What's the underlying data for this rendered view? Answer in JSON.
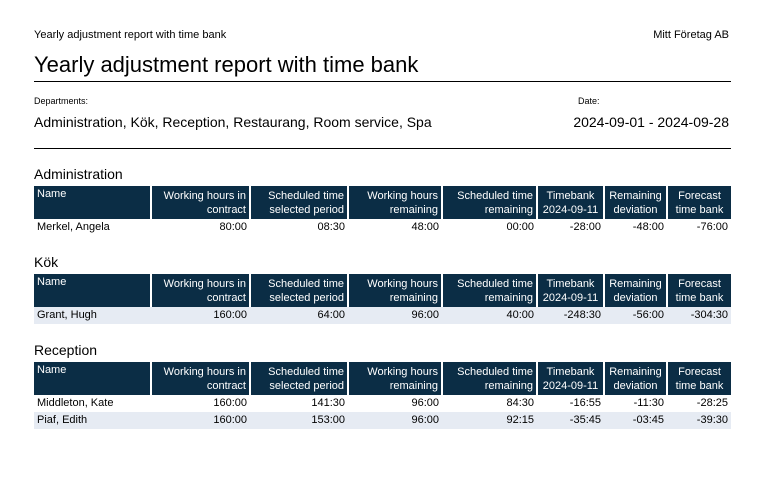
{
  "header": {
    "small_title": "Yearly adjustment report with time bank",
    "company": "Mitt Företag AB",
    "title": "Yearly adjustment report with time bank"
  },
  "meta": {
    "departments_label": "Departments:",
    "departments_value": "Administration, Kök, Reception, Restaurang, Room service, Spa",
    "date_label": "Date:",
    "date_value": "2024-09-01 - 2024-09-28"
  },
  "columns": [
    {
      "line1": "Name",
      "line2": ""
    },
    {
      "line1": "Working hours in",
      "line2": "contract"
    },
    {
      "line1": "Scheduled time",
      "line2": "selected period"
    },
    {
      "line1": "Working hours",
      "line2": "remaining"
    },
    {
      "line1": "Scheduled time",
      "line2": "remaining"
    },
    {
      "line1": "Timebank",
      "line2": "2024-09-11"
    },
    {
      "line1": "Remaining",
      "line2": "deviation"
    },
    {
      "line1": "Forecast",
      "line2": "time bank"
    }
  ],
  "sections": [
    {
      "title": "Administration",
      "rows": [
        [
          "Merkel, Angela",
          "80:00",
          "08:30",
          "48:00",
          "00:00",
          "-28:00",
          "-48:00",
          "-76:00"
        ]
      ]
    },
    {
      "title": "Kök",
      "rows": [
        [
          "Grant, Hugh",
          "160:00",
          "64:00",
          "96:00",
          "40:00",
          "-248:30",
          "-56:00",
          "-304:30"
        ]
      ]
    },
    {
      "title": "Reception",
      "rows": [
        [
          "Middleton, Kate",
          "160:00",
          "141:30",
          "96:00",
          "84:30",
          "-16:55",
          "-11:30",
          "-28:25"
        ],
        [
          "Piaf, Edith",
          "160:00",
          "153:00",
          "96:00",
          "92:15",
          "-35:45",
          "-03:45",
          "-39:30"
        ]
      ]
    }
  ]
}
